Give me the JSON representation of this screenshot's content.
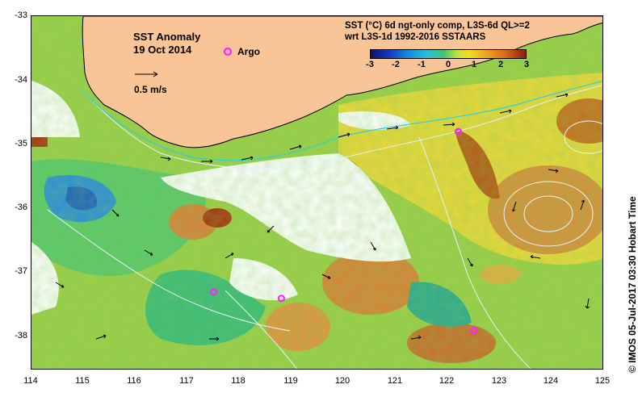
{
  "map": {
    "title": "SST Anomaly",
    "date": "19 Oct 2014",
    "argo_label": "Argo",
    "scale_label": "0.5 m/s",
    "legend_line1": "SST (°C) 6d ngt-only comp, L3S-6d QL>=2",
    "legend_line2": "wrt L3S-1d 1992-2016 SSTAARS",
    "colorbar": {
      "ticks": [
        "-3",
        "-2",
        "-1",
        "0",
        "1",
        "2",
        "3"
      ],
      "range": [
        -3,
        3
      ]
    },
    "y_axis": {
      "labels": [
        "-33",
        "-34",
        "-35",
        "-36",
        "-37",
        "-38"
      ]
    },
    "x_axis": {
      "labels": [
        "114",
        "115",
        "116",
        "117",
        "118",
        "119",
        "120",
        "121",
        "122",
        "123",
        "124",
        "125"
      ]
    },
    "argo_floats": [
      {
        "lon": 122.2,
        "lat": -34.8
      },
      {
        "lon": 117.5,
        "lat": -37.3
      },
      {
        "lon": 118.8,
        "lat": -37.4
      },
      {
        "lon": 122.5,
        "lat": -37.9
      }
    ],
    "side_text": "©  IMOS 05-Jul-2017 03:30 Hobart Time",
    "colors": {
      "land": "#f9c597",
      "coast": "#000000",
      "argo": "#ff22ff",
      "contour": "#e8f0ff",
      "ocean_base": "#9ccf48"
    }
  }
}
